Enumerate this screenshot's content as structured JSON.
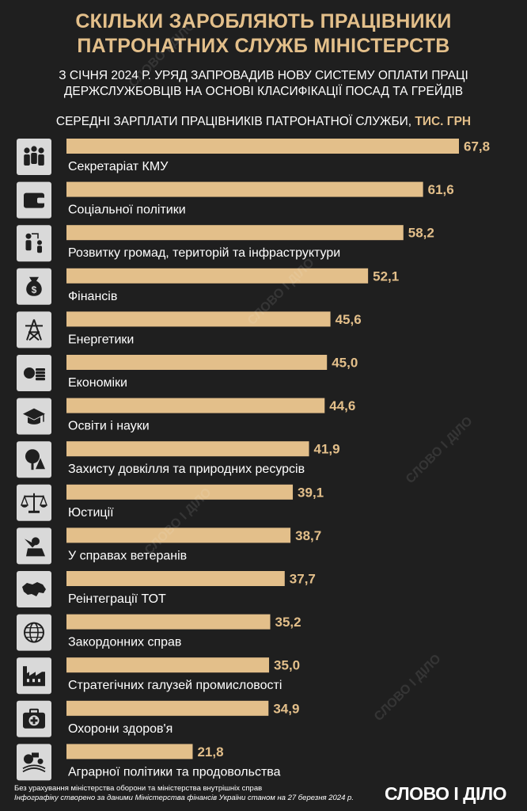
{
  "title_line1": "СКІЛЬКИ ЗАРОБЛЯЮТЬ ПРАЦІВНИКИ",
  "title_line2": "ПАТРОНАТНИХ СЛУЖБ МІНІСТЕРСТВ",
  "subtitle_line1": "З СІЧНЯ 2024 Р. УРЯД ЗАПРОВАДИВ НОВУ СИСТЕМУ ОПЛАТИ ПРАЦІ",
  "subtitle_line2": "ДЕРЖСЛУЖБОВЦІВ НА ОСНОВІ КЛАСИФІКАЦІЇ ПОСАД ТА ГРЕЙДІВ",
  "chart_header": "СЕРЕДНІ ЗАРПЛАТИ ПРАЦІВНИКІВ ПАТРОНАТНОЇ СЛУЖБИ,",
  "chart_unit": "ТИС. ГРН",
  "footer_note1": "Без урахування міністерства оборони та міністерства внутрішніх справ",
  "footer_note2": "Інфографіку створено за даними Міністерства фінансів України станом на 27 березня 2024 р.",
  "logo": "СЛОВО І ДІЛО",
  "watermark": "СЛОВО І ДІЛО",
  "colors": {
    "bar": "#e3bf8a",
    "title": "#e3bf8a",
    "background": "#1f1f1f",
    "icon_bg": "#d9d9d9",
    "icon_fg": "#1f1f1f"
  },
  "chart_data": {
    "type": "bar",
    "orientation": "horizontal",
    "title": "СЕРЕДНІ ЗАРПЛАТИ ПРАЦІВНИКІВ ПАТРОНАТНОЇ СЛУЖБИ, ТИС. ГРН",
    "categories": [
      "Секретаріат КМУ",
      "Соціальної політики",
      "Розвитку громад, територій та інфраструктури",
      "Фінансів",
      "Енергетики",
      "Економіки",
      "Освіти і науки",
      "Захисту довкілля та природних ресурсів",
      "Юстиції",
      "У справах ветеранів",
      "Реінтеграції ТОТ",
      "Закордонних справ",
      "Стратегічних галузей промисловості",
      "Охорони здоров'я",
      "Аграрної політики та продовольства"
    ],
    "value_labels": [
      "67,8",
      "61,6",
      "58,2",
      "52,1",
      "45,6",
      "45,0",
      "44,6",
      "41,9",
      "39,1",
      "38,7",
      "37,7",
      "35,2",
      "35,0",
      "34,9",
      "21,8"
    ],
    "values": [
      67.8,
      61.6,
      58.2,
      52.1,
      45.6,
      45.0,
      44.6,
      41.9,
      39.1,
      38.7,
      37.7,
      35.2,
      35.0,
      34.9,
      21.8
    ],
    "icons": [
      "people-icon",
      "wallet-icon",
      "community-icon",
      "money-bag-icon",
      "power-tower-icon",
      "coins-icon",
      "graduation-cap-icon",
      "tree-icon",
      "scales-icon",
      "soldier-salute-icon",
      "ukraine-map-icon",
      "globe-icon",
      "factory-icon",
      "medical-kit-icon",
      "tractor-icon"
    ],
    "xlim": [
      0,
      67.8
    ],
    "grid": false,
    "legend": "none"
  }
}
